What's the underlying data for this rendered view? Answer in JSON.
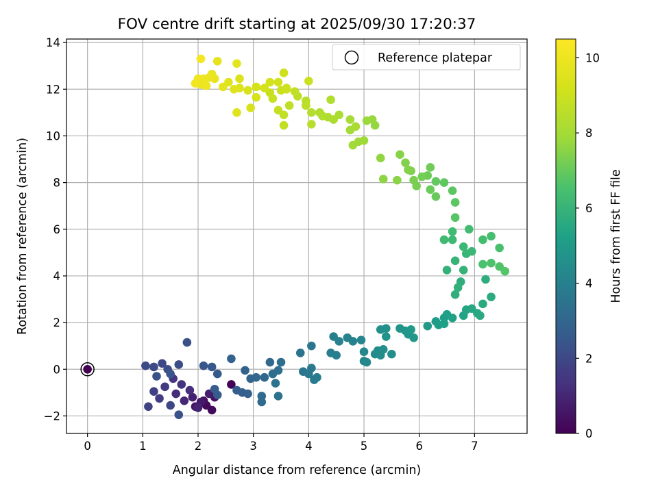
{
  "chart_data": {
    "type": "scatter",
    "title": "FOV centre drift starting at 2025/09/30 17:20:37",
    "xlabel": "Angular distance from reference (arcmin)",
    "ylabel": "Rotation from reference (arcmin)",
    "xlim": [
      -0.38,
      7.95
    ],
    "ylim": [
      -2.75,
      14.15
    ],
    "xticks": [
      0,
      1,
      2,
      3,
      4,
      5,
      6,
      7
    ],
    "yticks": [
      -2,
      0,
      2,
      4,
      6,
      8,
      10,
      12,
      14
    ],
    "xtick_labels": [
      "0",
      "1",
      "2",
      "3",
      "4",
      "5",
      "6",
      "7"
    ],
    "ytick_labels": [
      "−2",
      "0",
      "2",
      "4",
      "6",
      "8",
      "10",
      "12",
      "14"
    ],
    "grid": true,
    "legend": {
      "position": "top-right",
      "entries": [
        "Reference platepar"
      ]
    },
    "reference_point": {
      "x": 0,
      "y": 0
    },
    "colorbar": {
      "label": "Hours from first FF file",
      "range": [
        0,
        10.5
      ],
      "ticks": [
        0,
        2,
        4,
        6,
        8,
        10
      ],
      "tick_labels": [
        "0",
        "2",
        "4",
        "6",
        "8",
        "10"
      ],
      "colormap": "viridis"
    },
    "points": [
      [
        2.6,
        -0.65,
        0.05
      ],
      [
        2.15,
        -1.55,
        0.15
      ],
      [
        2.25,
        -1.75,
        0.25
      ],
      [
        2.1,
        -1.35,
        0.35
      ],
      [
        2.3,
        -1.2,
        0.45
      ],
      [
        1.95,
        -1.6,
        0.55
      ],
      [
        2.05,
        -1.4,
        0.65
      ],
      [
        2.2,
        -1.05,
        0.75
      ],
      [
        1.9,
        -1.2,
        0.85
      ],
      [
        2.0,
        -1.65,
        0.95
      ],
      [
        1.75,
        -1.35,
        1.05
      ],
      [
        1.6,
        -1.05,
        1.15
      ],
      [
        1.85,
        -0.9,
        1.25
      ],
      [
        1.7,
        -0.65,
        1.35
      ],
      [
        1.55,
        -0.4,
        1.45
      ],
      [
        1.4,
        -0.75,
        1.55
      ],
      [
        1.3,
        -1.25,
        1.65
      ],
      [
        1.2,
        -0.95,
        1.75
      ],
      [
        1.1,
        -1.6,
        1.85
      ],
      [
        1.5,
        -1.55,
        1.95
      ],
      [
        1.35,
        0.25,
        2.0
      ],
      [
        1.2,
        0.1,
        2.05
      ],
      [
        1.05,
        0.15,
        2.1
      ],
      [
        1.45,
        0.0,
        2.15
      ],
      [
        1.65,
        0.2,
        2.2
      ],
      [
        1.8,
        1.15,
        2.25
      ],
      [
        1.65,
        -1.95,
        2.3
      ],
      [
        1.25,
        -0.3,
        2.35
      ],
      [
        1.5,
        -0.2,
        2.4
      ],
      [
        2.1,
        0.15,
        2.45
      ],
      [
        2.25,
        0.1,
        2.5
      ],
      [
        2.35,
        -0.2,
        2.55
      ],
      [
        2.35,
        -1.1,
        2.6
      ],
      [
        2.3,
        -0.85,
        2.65
      ],
      [
        2.7,
        -0.9,
        2.7
      ],
      [
        2.8,
        -1.0,
        2.75
      ],
      [
        2.9,
        -1.05,
        2.8
      ],
      [
        2.6,
        0.45,
        2.85
      ],
      [
        2.85,
        -0.05,
        2.9
      ],
      [
        2.95,
        -0.4,
        2.95
      ],
      [
        3.05,
        -0.35,
        3.0
      ],
      [
        3.2,
        -0.35,
        3.05
      ],
      [
        3.3,
        0.3,
        3.1
      ],
      [
        3.15,
        -1.15,
        3.15
      ],
      [
        3.15,
        -1.4,
        3.2
      ],
      [
        3.35,
        -0.2,
        3.25
      ],
      [
        3.45,
        -0.05,
        3.3
      ],
      [
        3.5,
        0.3,
        3.35
      ],
      [
        3.45,
        -1.15,
        3.4
      ],
      [
        3.4,
        -0.6,
        3.45
      ],
      [
        3.85,
        0.7,
        3.5
      ],
      [
        4.05,
        1.0,
        3.55
      ],
      [
        3.9,
        -0.1,
        3.6
      ],
      [
        4.0,
        -0.2,
        3.65
      ],
      [
        4.05,
        0.05,
        3.7
      ],
      [
        4.1,
        -0.45,
        3.75
      ],
      [
        4.15,
        -0.35,
        3.8
      ],
      [
        4.4,
        0.7,
        3.85
      ],
      [
        4.5,
        0.6,
        3.9
      ],
      [
        4.45,
        1.4,
        3.95
      ],
      [
        4.55,
        1.2,
        4.0
      ],
      [
        4.7,
        1.35,
        4.05
      ],
      [
        4.8,
        1.2,
        4.1
      ],
      [
        4.95,
        1.25,
        4.15
      ],
      [
        5.0,
        0.75,
        4.2
      ],
      [
        5.0,
        0.35,
        4.25
      ],
      [
        5.05,
        0.3,
        4.3
      ],
      [
        5.2,
        0.65,
        4.35
      ],
      [
        5.25,
        0.8,
        4.4
      ],
      [
        5.3,
        0.6,
        4.45
      ],
      [
        5.35,
        0.85,
        4.5
      ],
      [
        5.5,
        0.65,
        4.55
      ],
      [
        5.3,
        1.7,
        4.6
      ],
      [
        5.4,
        1.75,
        4.65
      ],
      [
        5.4,
        1.4,
        4.7
      ],
      [
        5.65,
        1.75,
        4.75
      ],
      [
        5.75,
        1.65,
        4.8
      ],
      [
        5.8,
        1.5,
        4.85
      ],
      [
        5.9,
        1.35,
        4.9
      ],
      [
        5.85,
        1.7,
        4.95
      ],
      [
        6.15,
        1.85,
        5.0
      ],
      [
        6.3,
        2.05,
        5.05
      ],
      [
        6.35,
        1.9,
        5.1
      ],
      [
        6.45,
        2.2,
        5.15
      ],
      [
        6.5,
        2.35,
        5.2
      ],
      [
        6.45,
        1.95,
        5.25
      ],
      [
        6.6,
        2.2,
        5.3
      ],
      [
        6.8,
        2.3,
        5.35
      ],
      [
        6.85,
        2.55,
        5.4
      ],
      [
        6.95,
        2.6,
        5.45
      ],
      [
        7.05,
        2.4,
        5.5
      ],
      [
        7.1,
        2.3,
        5.55
      ],
      [
        7.15,
        2.8,
        5.6
      ],
      [
        7.3,
        3.1,
        5.65
      ],
      [
        7.2,
        3.85,
        5.7
      ],
      [
        6.75,
        3.75,
        5.75
      ],
      [
        6.65,
        3.2,
        5.8
      ],
      [
        6.7,
        3.5,
        5.85
      ],
      [
        6.5,
        4.25,
        5.9
      ],
      [
        6.8,
        4.25,
        5.95
      ],
      [
        6.65,
        4.65,
        6.0
      ],
      [
        6.85,
        4.95,
        6.05
      ],
      [
        6.95,
        5.05,
        6.1
      ],
      [
        6.8,
        5.25,
        6.15
      ],
      [
        6.6,
        5.55,
        6.2
      ],
      [
        6.45,
        5.55,
        6.25
      ],
      [
        6.6,
        5.9,
        6.3
      ],
      [
        6.9,
        6.0,
        6.35
      ],
      [
        7.15,
        5.55,
        6.4
      ],
      [
        7.3,
        5.7,
        6.45
      ],
      [
        7.45,
        5.2,
        6.5
      ],
      [
        7.15,
        4.5,
        6.55
      ],
      [
        7.3,
        4.55,
        6.6
      ],
      [
        7.45,
        4.4,
        6.65
      ],
      [
        7.55,
        4.2,
        6.7
      ],
      [
        6.65,
        6.5,
        6.75
      ],
      [
        6.65,
        7.15,
        6.8
      ],
      [
        6.6,
        7.65,
        6.85
      ],
      [
        6.45,
        8.0,
        6.9
      ],
      [
        6.3,
        8.05,
        6.95
      ],
      [
        6.3,
        7.4,
        7.0
      ],
      [
        6.2,
        7.7,
        7.05
      ],
      [
        6.15,
        8.3,
        7.1
      ],
      [
        6.2,
        8.65,
        7.15
      ],
      [
        6.05,
        8.25,
        7.2
      ],
      [
        5.95,
        7.85,
        7.25
      ],
      [
        5.9,
        8.1,
        7.3
      ],
      [
        5.85,
        8.5,
        7.35
      ],
      [
        5.75,
        8.85,
        7.4
      ],
      [
        5.8,
        8.55,
        7.45
      ],
      [
        5.65,
        9.2,
        7.5
      ],
      [
        5.6,
        8.1,
        7.55
      ],
      [
        5.35,
        8.15,
        7.6
      ],
      [
        5.3,
        9.05,
        7.65
      ],
      [
        5.2,
        10.45,
        7.7
      ],
      [
        5.15,
        10.7,
        7.75
      ],
      [
        5.05,
        10.65,
        7.8
      ],
      [
        5.0,
        9.8,
        7.85
      ],
      [
        4.9,
        9.75,
        7.9
      ],
      [
        4.8,
        9.6,
        7.95
      ],
      [
        4.75,
        10.25,
        8.0
      ],
      [
        4.75,
        10.7,
        8.05
      ],
      [
        4.85,
        10.4,
        8.1
      ],
      [
        4.55,
        10.9,
        8.15
      ],
      [
        4.45,
        10.7,
        8.2
      ],
      [
        4.35,
        10.8,
        8.25
      ],
      [
        4.4,
        11.55,
        8.3
      ],
      [
        4.2,
        11.0,
        8.35
      ],
      [
        4.05,
        11.0,
        8.4
      ],
      [
        4.05,
        10.5,
        8.45
      ],
      [
        3.95,
        11.5,
        8.5
      ],
      [
        3.95,
        11.3,
        8.55
      ],
      [
        3.8,
        11.7,
        8.6
      ],
      [
        3.65,
        11.3,
        8.65
      ],
      [
        3.55,
        10.9,
        8.7
      ],
      [
        3.55,
        10.45,
        8.75
      ],
      [
        3.45,
        11.1,
        8.8
      ],
      [
        3.35,
        11.6,
        8.85
      ],
      [
        3.3,
        11.85,
        8.9
      ],
      [
        3.5,
        11.95,
        8.95
      ],
      [
        3.6,
        12.05,
        9.0
      ],
      [
        3.55,
        12.7,
        9.05
      ],
      [
        3.45,
        12.3,
        9.1
      ],
      [
        3.3,
        12.3,
        9.15
      ],
      [
        3.2,
        12.05,
        9.2
      ],
      [
        3.05,
        11.65,
        9.25
      ],
      [
        2.95,
        11.2,
        9.3
      ],
      [
        2.9,
        11.95,
        9.35
      ],
      [
        2.75,
        12.05,
        9.4
      ],
      [
        2.75,
        12.45,
        9.45
      ],
      [
        2.7,
        11.0,
        9.5
      ],
      [
        2.65,
        12.0,
        9.55
      ],
      [
        2.55,
        12.3,
        9.6
      ],
      [
        2.45,
        12.1,
        9.65
      ],
      [
        2.7,
        13.1,
        9.7
      ],
      [
        2.35,
        13.2,
        9.75
      ],
      [
        2.3,
        12.45,
        9.8
      ],
      [
        2.25,
        12.65,
        9.85
      ],
      [
        2.2,
        12.5,
        9.9
      ],
      [
        2.1,
        12.45,
        9.95
      ],
      [
        2.05,
        12.2,
        10.0
      ],
      [
        2.15,
        12.15,
        10.05
      ],
      [
        2.0,
        12.45,
        10.1
      ],
      [
        1.95,
        12.25,
        10.15
      ],
      [
        2.05,
        13.3,
        10.2
      ],
      [
        3.6,
        12.0,
        9.0
      ],
      [
        4.0,
        12.35,
        8.95
      ],
      [
        3.75,
        11.9,
        8.7
      ],
      [
        3.05,
        12.1,
        9.2
      ],
      [
        4.25,
        10.85,
        8.3
      ]
    ]
  }
}
